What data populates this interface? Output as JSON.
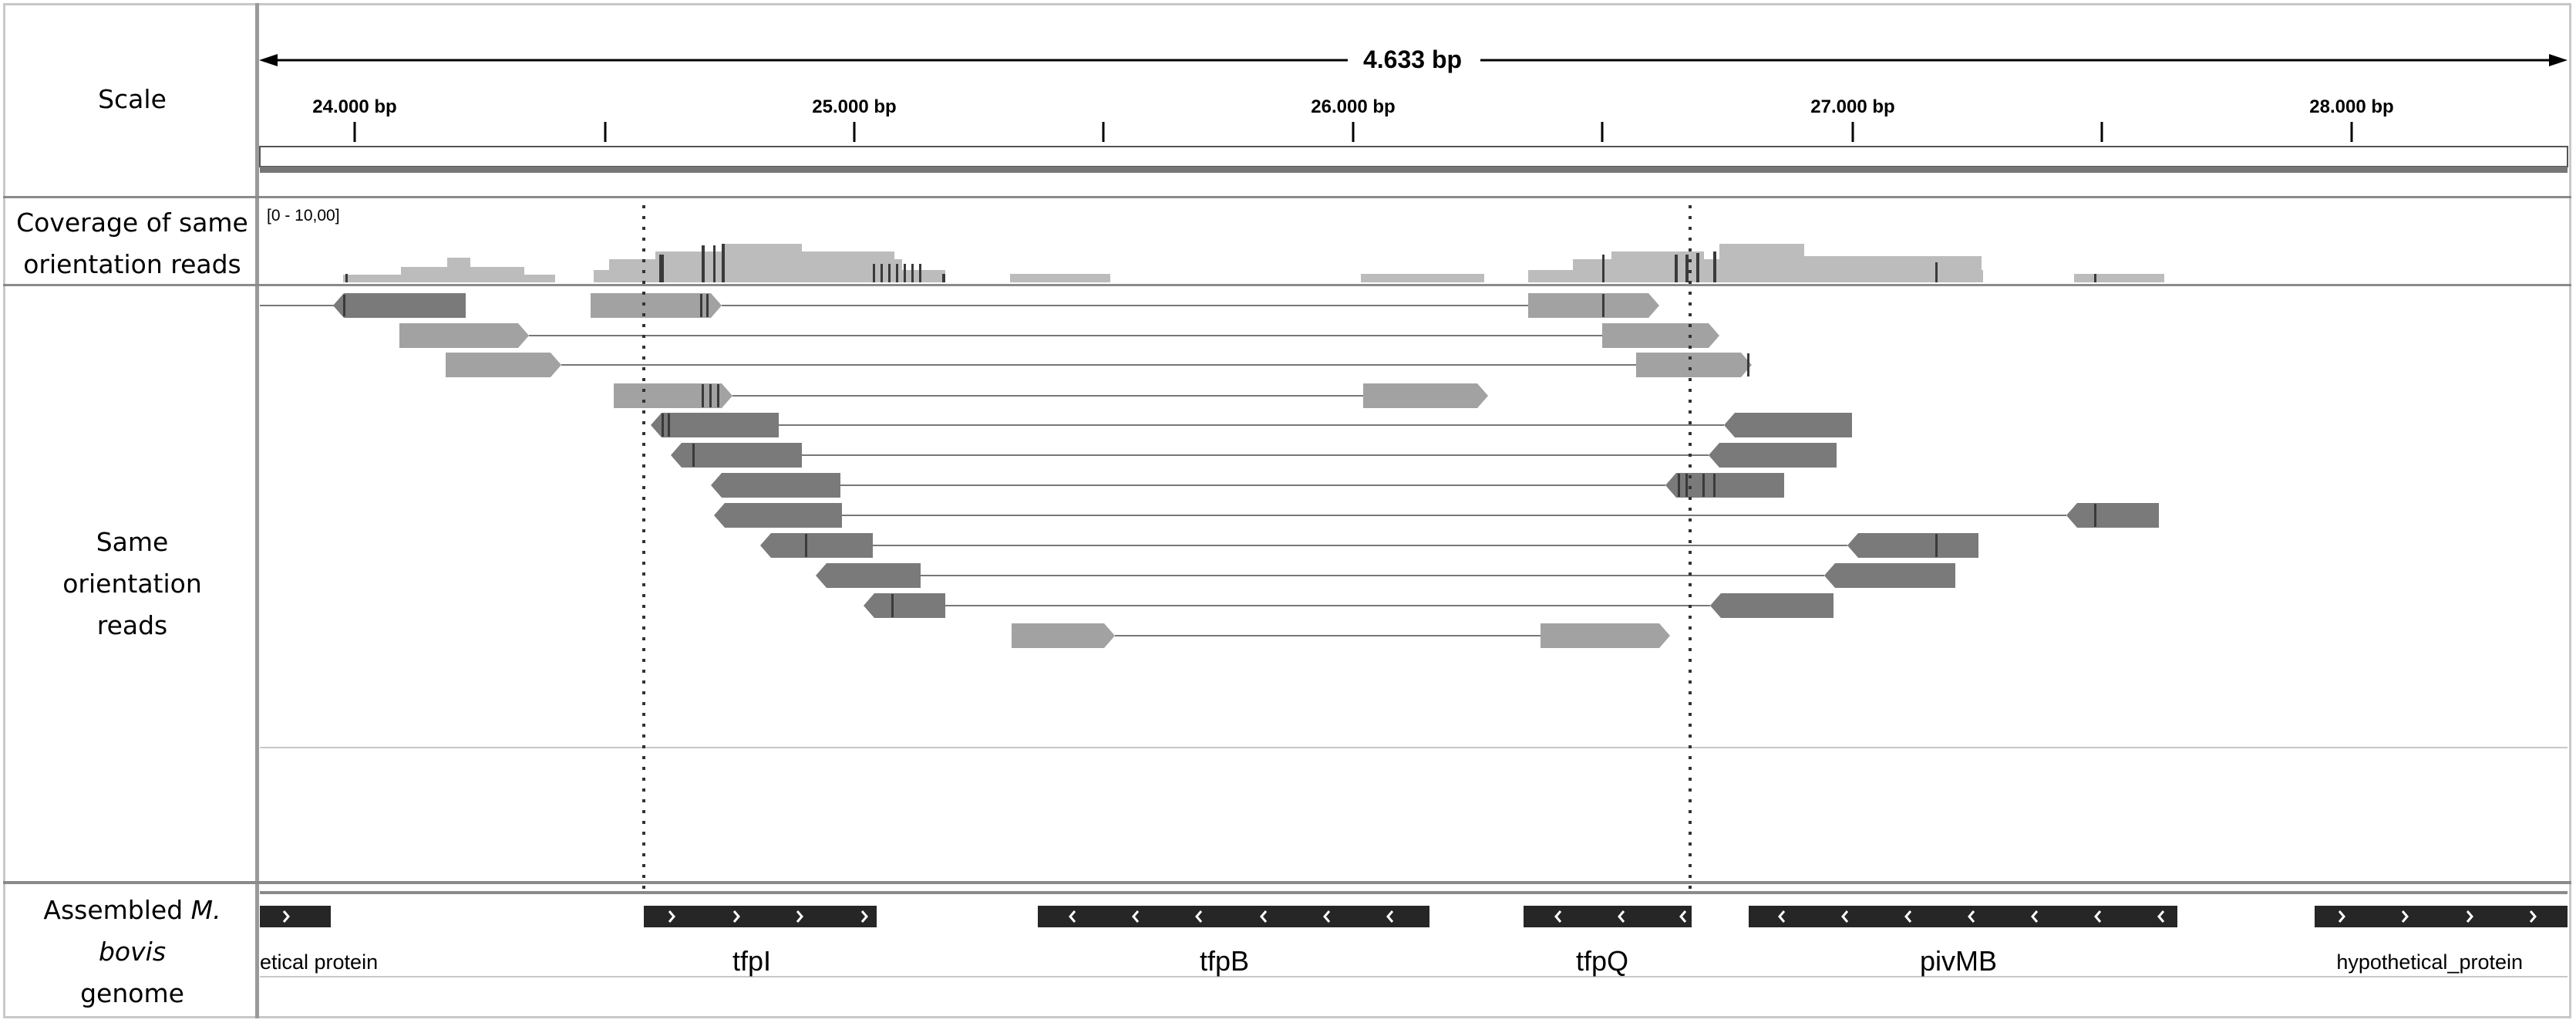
{
  "labels": {
    "scale": "Scale",
    "coverage_line1": "Coverage of same",
    "coverage_line2": "orientation reads",
    "reads_line1": "Same orientation reads",
    "genome_prefix": "Assembled ",
    "genome_species": "M. bovis",
    "genome_suffix": "genome"
  },
  "scale": {
    "span_label": "4.633 bp",
    "tick_labels": [
      "24.000 bp",
      "25.000 bp",
      "26.000 bp",
      "27.000 bp",
      "28.000 bp"
    ]
  },
  "coverage": {
    "range_label": "[0 - 10,00]"
  },
  "genes": [
    {
      "name": "etical protein",
      "small": true
    },
    {
      "name": "tfpI",
      "small": false
    },
    {
      "name": "tfpB",
      "small": false
    },
    {
      "name": "tfpQ",
      "small": false
    },
    {
      "name": "pivMB",
      "small": false
    },
    {
      "name": "hypothetical_protein",
      "small": true
    }
  ],
  "colors": {
    "read_light": "#a2a2a2",
    "read_dark": "#7a7a7a",
    "coverage": "#bcbcbc",
    "gene": "#262626",
    "mismatch": "#3a3a3a"
  }
}
